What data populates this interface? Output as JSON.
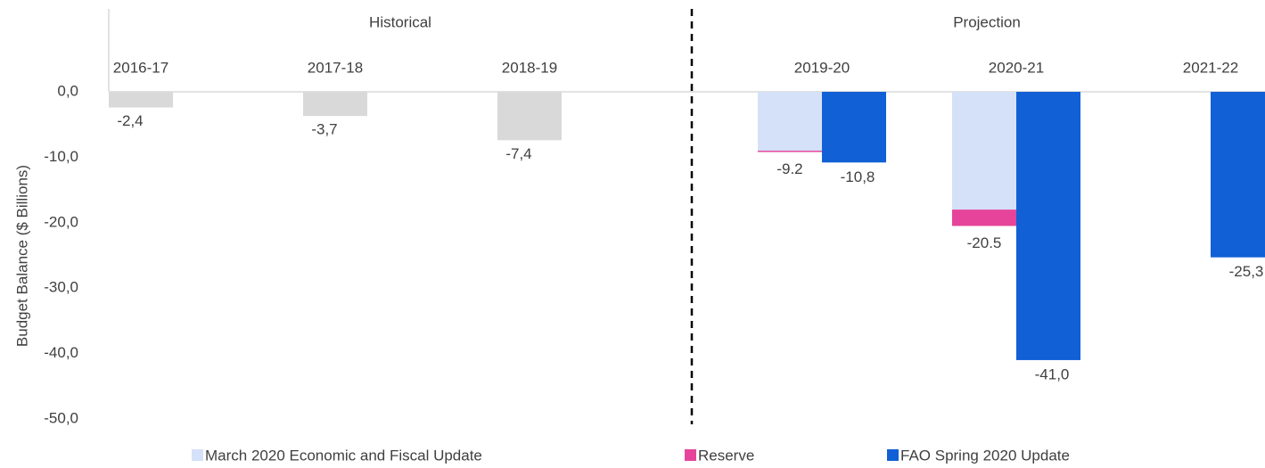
{
  "chart_data": {
    "type": "bar",
    "y_label": "Budget Balance ($ Billions)",
    "sections": [
      "Historical",
      "Projection"
    ],
    "categories": [
      "2016-17",
      "2017-18",
      "2018-19",
      "2019-20",
      "2020-21",
      "2021-22"
    ],
    "historical": {
      "color": "#d9d9d9",
      "values": [
        -2.4,
        -3.7,
        -7.4,
        null,
        null,
        null
      ],
      "value_labels": [
        "-2,4",
        "-3,7",
        "-7,4",
        null,
        null,
        null
      ]
    },
    "series": [
      {
        "name": "March 2020 Economic and Fiscal Update",
        "color": "#d4e1f8",
        "values": [
          null,
          null,
          null,
          -9.0,
          -18.0,
          null
        ]
      },
      {
        "name": "Reserve",
        "color": "#e5449a",
        "values": [
          null,
          null,
          null,
          -0.2,
          -2.5,
          null
        ]
      },
      {
        "name": "FAO Spring 2020 Update",
        "color": "#1160d6",
        "values": [
          null,
          null,
          null,
          -10.8,
          -41.0,
          -25.3
        ],
        "value_labels": [
          null,
          null,
          null,
          "-10,8",
          "-41,0",
          "-25,3"
        ]
      }
    ],
    "totals": [
      null,
      null,
      null,
      -9.2,
      -20.5,
      null
    ],
    "ylim": [
      -50,
      0
    ],
    "yticks": [
      {
        "value": 0,
        "label": "0,0"
      },
      {
        "value": -10,
        "label": "-10,0"
      },
      {
        "value": -20,
        "label": "-20,0"
      },
      {
        "value": -30,
        "label": "-30,0"
      },
      {
        "value": -40,
        "label": "-40,0"
      },
      {
        "value": -50,
        "label": "-50,0"
      }
    ],
    "grid": false
  }
}
